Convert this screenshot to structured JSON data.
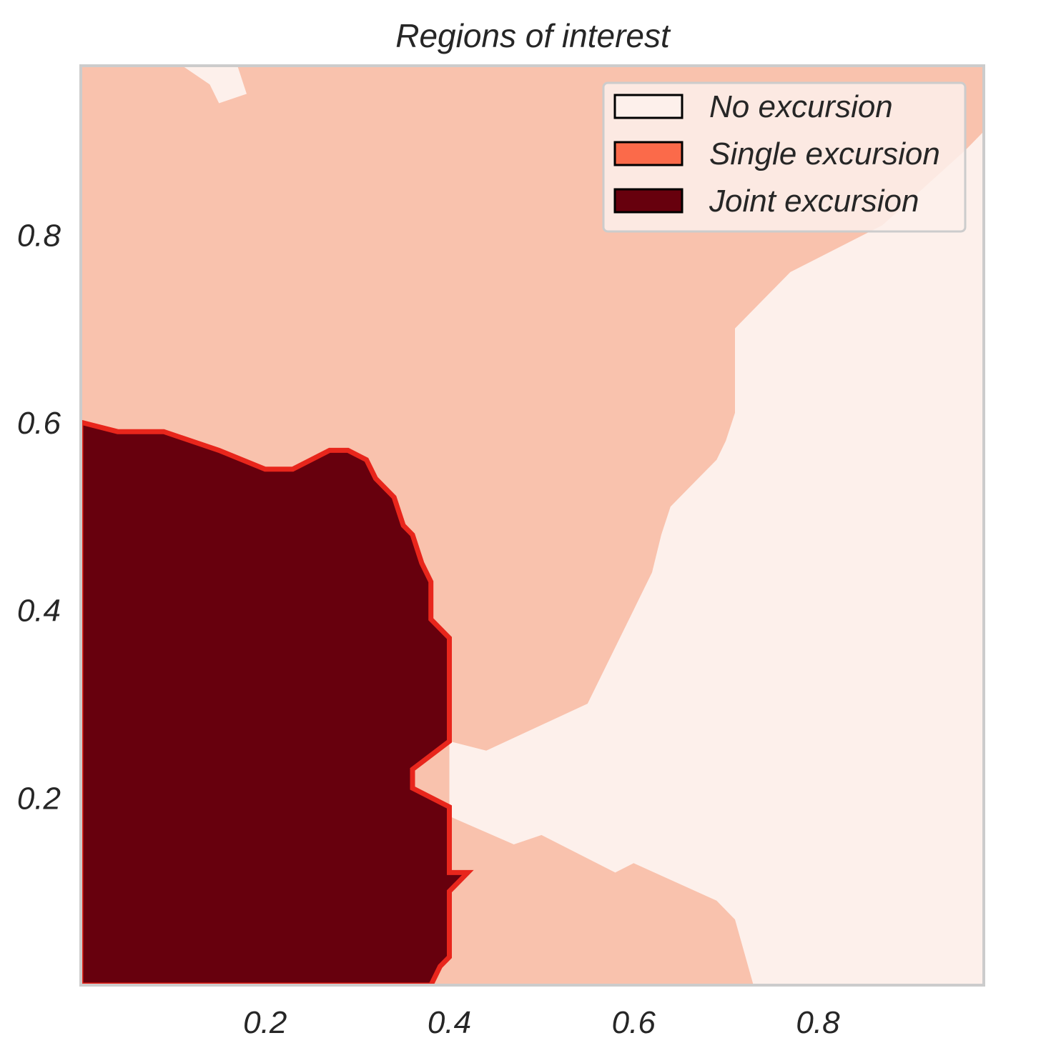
{
  "chart_data": {
    "type": "heatmap",
    "title": "Regions of interest",
    "xlabel": "",
    "ylabel": "",
    "xlim": [
      0,
      0.98
    ],
    "ylim": [
      0,
      0.98
    ],
    "x_ticks": [
      "0.2",
      "0.4",
      "0.6",
      "0.8"
    ],
    "y_ticks": [
      "0.2",
      "0.4",
      "0.6",
      "0.8"
    ],
    "grid": false,
    "legend_position": "top-right",
    "colors": {
      "background": "#fdf0eb",
      "single": "#f9c2ad",
      "joint": "#67000d",
      "joint_edge": "#e8261c",
      "frame": "#cccccc",
      "legend_single": "#fb6a4a"
    },
    "categories": [
      {
        "label": "No excursion",
        "color": "#fdf0eb"
      },
      {
        "label": "Single excursion",
        "color": "#fb6a4a"
      },
      {
        "label": "Joint excursion",
        "color": "#67000d"
      }
    ],
    "regions": {
      "no_excursion": [
        [
          0.4,
          0.26
        ],
        [
          0.44,
          0.25
        ],
        [
          0.55,
          0.3
        ],
        [
          0.56,
          0.32
        ],
        [
          0.57,
          0.34
        ],
        [
          0.58,
          0.36
        ],
        [
          0.6,
          0.4
        ],
        [
          0.62,
          0.44
        ],
        [
          0.63,
          0.48
        ],
        [
          0.64,
          0.51
        ],
        [
          0.67,
          0.54
        ],
        [
          0.69,
          0.56
        ],
        [
          0.7,
          0.58
        ],
        [
          0.71,
          0.61
        ],
        [
          0.71,
          0.7
        ],
        [
          0.74,
          0.73
        ],
        [
          0.77,
          0.76
        ],
        [
          0.87,
          0.81
        ],
        [
          0.96,
          0.89
        ],
        [
          0.98,
          0.91
        ],
        [
          0.98,
          0.0
        ],
        [
          0.73,
          0.0
        ],
        [
          0.71,
          0.07
        ],
        [
          0.69,
          0.09
        ],
        [
          0.6,
          0.13
        ],
        [
          0.58,
          0.12
        ],
        [
          0.5,
          0.16
        ],
        [
          0.47,
          0.15
        ],
        [
          0.4,
          0.18
        ]
      ],
      "no_excursion_small": [
        [
          0.11,
          0.98
        ],
        [
          0.17,
          0.98
        ],
        [
          0.18,
          0.95
        ],
        [
          0.15,
          0.94
        ],
        [
          0.14,
          0.96
        ]
      ],
      "joint_excursion": [
        [
          0.0,
          0.6
        ],
        [
          0.04,
          0.59
        ],
        [
          0.09,
          0.59
        ],
        [
          0.15,
          0.57
        ],
        [
          0.2,
          0.55
        ],
        [
          0.23,
          0.55
        ],
        [
          0.27,
          0.57
        ],
        [
          0.29,
          0.57
        ],
        [
          0.31,
          0.56
        ],
        [
          0.32,
          0.54
        ],
        [
          0.34,
          0.52
        ],
        [
          0.35,
          0.49
        ],
        [
          0.36,
          0.48
        ],
        [
          0.37,
          0.45
        ],
        [
          0.38,
          0.43
        ],
        [
          0.38,
          0.39
        ],
        [
          0.4,
          0.37
        ],
        [
          0.4,
          0.26
        ],
        [
          0.36,
          0.23
        ],
        [
          0.36,
          0.21
        ],
        [
          0.4,
          0.19
        ],
        [
          0.4,
          0.12
        ],
        [
          0.42,
          0.12
        ],
        [
          0.4,
          0.1
        ],
        [
          0.4,
          0.03
        ],
        [
          0.39,
          0.02
        ],
        [
          0.38,
          0.0
        ],
        [
          0.0,
          0.0
        ]
      ]
    }
  }
}
